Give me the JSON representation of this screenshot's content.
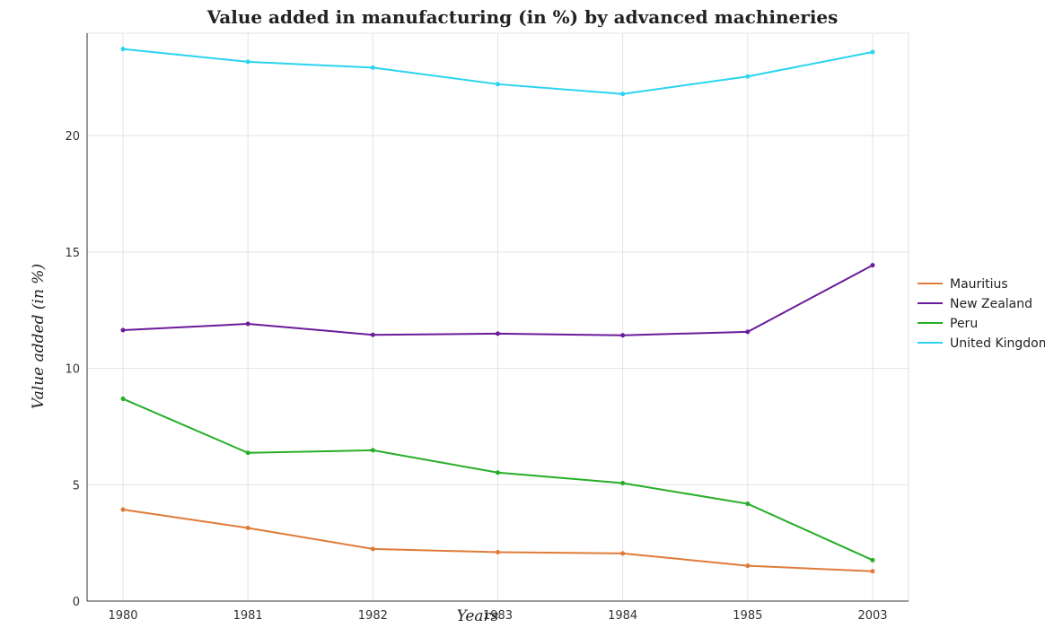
{
  "chart_data": {
    "type": "line",
    "title": "Value added in manufacturing (in %) by advanced machineries",
    "xlabel": "Years",
    "ylabel": "Value added (in %)",
    "categories": [
      "1980",
      "1981",
      "1982",
      "1983",
      "1984",
      "1985",
      "2003"
    ],
    "ylim": [
      0,
      24.4
    ],
    "yticks": [
      0,
      5,
      10,
      15,
      20
    ],
    "grid": true,
    "legend_position": "right",
    "series": [
      {
        "name": "Mauritius",
        "color": "#e07b39",
        "values": [
          3.93,
          3.14,
          2.24,
          2.1,
          2.05,
          1.52,
          1.28
        ]
      },
      {
        "name": "New Zealand",
        "color": "#6a1b9a",
        "values": [
          11.64,
          11.91,
          11.44,
          11.49,
          11.42,
          11.57,
          14.43
        ]
      },
      {
        "name": "Peru",
        "color": "#27ae27",
        "values": [
          8.69,
          6.37,
          6.48,
          5.52,
          5.07,
          4.18,
          1.76
        ]
      },
      {
        "name": "United Kingdom",
        "color": "#2ad3f0",
        "values": [
          23.72,
          23.17,
          22.92,
          22.21,
          21.79,
          22.54,
          23.59
        ]
      }
    ]
  }
}
